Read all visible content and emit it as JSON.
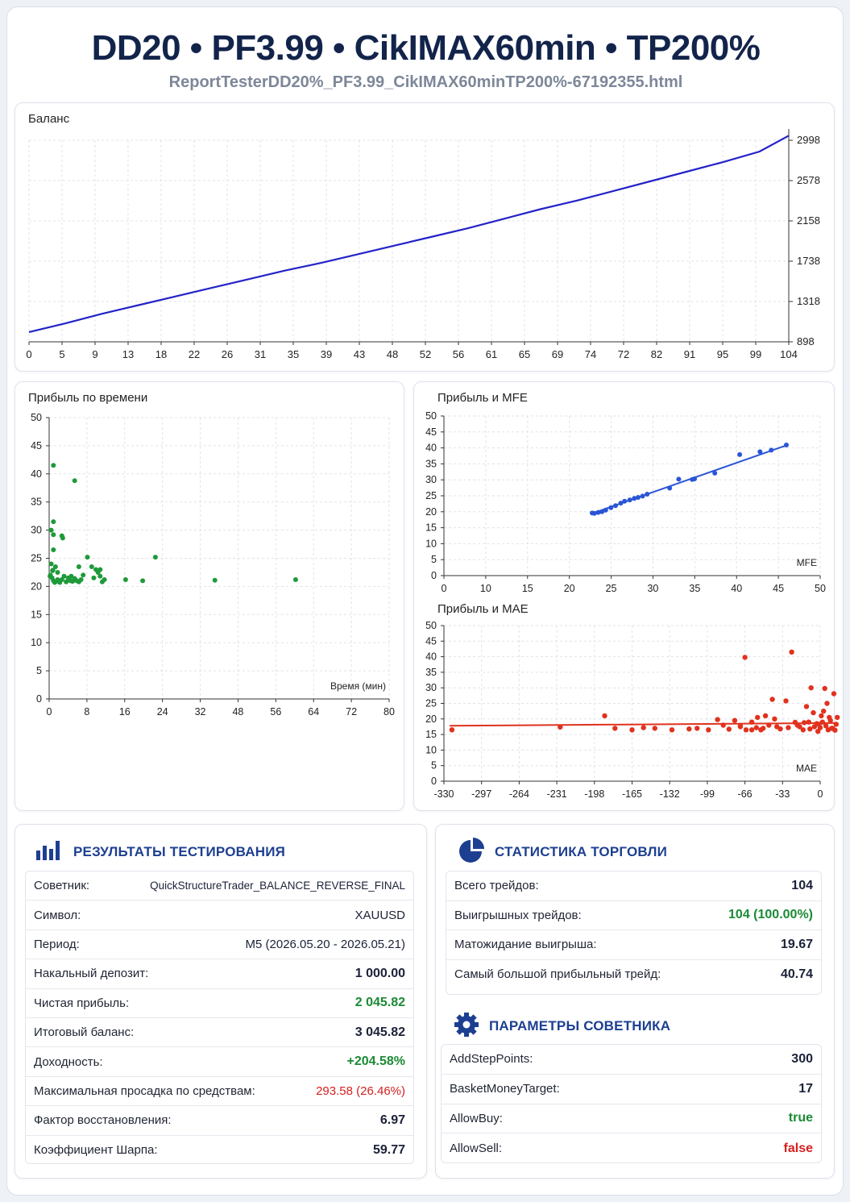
{
  "header": {
    "title": "DD20 • PF3.99 • CikIMAX60min • TP200%",
    "subtitle": "ReportTesterDD20%_PF3.99_CikIMAX60minTP200%-67192355.html"
  },
  "colors": {
    "balance_line": "#2323c8",
    "time_scatter": "#1e9a3a",
    "mfe_scatter": "#2a55d6",
    "mae_scatter": "#e0321e",
    "accent": "#1d3f91",
    "positive": "#1b8a35",
    "negative": "#d62020"
  },
  "charts": {
    "balance": {
      "title": "Баланс",
      "x_ticks": [
        "0",
        "5",
        "9",
        "13",
        "18",
        "22",
        "26",
        "31",
        "35",
        "39",
        "43",
        "48",
        "52",
        "56",
        "61",
        "65",
        "69",
        "74",
        "72",
        "82",
        "91",
        "95",
        "99",
        "104"
      ],
      "y_ticks": [
        "2998",
        "2578",
        "2158",
        "1738",
        "1318",
        "898"
      ]
    },
    "time": {
      "title": "Прибыль по времени",
      "x_label": "Время (мин)",
      "x_ticks": [
        "0",
        "8",
        "16",
        "24",
        "32",
        "48",
        "56",
        "64",
        "72",
        "80"
      ],
      "y_ticks": [
        "50",
        "45",
        "40",
        "35",
        "30",
        "25",
        "20",
        "15",
        "10",
        "5",
        "0"
      ]
    },
    "mfe": {
      "title": "Прибыль и MFE",
      "x_label": "MFE",
      "x_ticks": [
        "0",
        "10",
        "15",
        "20",
        "25",
        "30",
        "35",
        "40",
        "45",
        "50"
      ],
      "y_ticks": [
        "50",
        "45",
        "40",
        "35",
        "30",
        "25",
        "20",
        "15",
        "10",
        "5",
        "0"
      ]
    },
    "mae": {
      "title": "Прибыль и MAE",
      "x_label": "MAE",
      "x_ticks": [
        "-330",
        "-297",
        "-264",
        "-231",
        "-198",
        "-165",
        "-132",
        "-99",
        "-66",
        "-33",
        "0"
      ],
      "y_ticks": [
        "50",
        "45",
        "40",
        "35",
        "30",
        "25",
        "20",
        "15",
        "10",
        "5",
        "0"
      ]
    }
  },
  "chart_data": [
    {
      "type": "line",
      "title": "Баланс",
      "x": [
        0,
        5,
        10,
        15,
        20,
        25,
        30,
        35,
        40,
        45,
        50,
        55,
        60,
        65,
        70,
        75,
        80,
        85,
        90,
        95,
        100,
        104
      ],
      "y": [
        1000,
        1090,
        1190,
        1280,
        1370,
        1460,
        1550,
        1640,
        1720,
        1810,
        1900,
        1990,
        2080,
        2180,
        2280,
        2370,
        2470,
        2570,
        2670,
        2770,
        2880,
        3046
      ],
      "ylim": [
        898,
        2998
      ],
      "xlim": [
        0,
        104
      ]
    },
    {
      "type": "scatter",
      "title": "Прибыль по времени",
      "xlabel": "Время (мин)",
      "xlim": [
        0,
        80
      ],
      "ylim": [
        0,
        50
      ],
      "points": [
        [
          1,
          41.5
        ],
        [
          6,
          38.8
        ],
        [
          1,
          31.5
        ],
        [
          0.5,
          30
        ],
        [
          1,
          29.2
        ],
        [
          3,
          29
        ],
        [
          3.2,
          28.6
        ],
        [
          1,
          26.5
        ],
        [
          0.5,
          24
        ],
        [
          1.5,
          23.5
        ],
        [
          0.8,
          22.8
        ],
        [
          0.3,
          22
        ],
        [
          0.7,
          21.5
        ],
        [
          1,
          21
        ],
        [
          1.5,
          20.8
        ],
        [
          2,
          21.2
        ],
        [
          2.5,
          20.7
        ],
        [
          3,
          21.2
        ],
        [
          4,
          20.8
        ],
        [
          4.5,
          21.5
        ],
        [
          5,
          21
        ],
        [
          5.5,
          20.9
        ],
        [
          6,
          21.4
        ],
        [
          6.5,
          21
        ],
        [
          7,
          20.8
        ],
        [
          7.5,
          21.2
        ],
        [
          8,
          22
        ],
        [
          9,
          25.2
        ],
        [
          10,
          23.5
        ],
        [
          11,
          23
        ],
        [
          11.5,
          22.5
        ],
        [
          12,
          21.8
        ],
        [
          12.5,
          20.8
        ],
        [
          13,
          21.2
        ],
        [
          7,
          23.5
        ],
        [
          10.5,
          21.5
        ],
        [
          12,
          23
        ],
        [
          18,
          21.2
        ],
        [
          22,
          21
        ],
        [
          25,
          25.2
        ],
        [
          39,
          21.1
        ],
        [
          58,
          21.2
        ],
        [
          2,
          22.5
        ],
        [
          3.5,
          21.8
        ],
        [
          0.2,
          21.8
        ],
        [
          0.9,
          22.9
        ],
        [
          1.3,
          20.7
        ],
        [
          5.2,
          21.8
        ]
      ]
    },
    {
      "type": "scatter",
      "title": "Прибыль и MFE",
      "xlabel": "MFE",
      "xlim": [
        0,
        50
      ],
      "ylim": [
        0,
        50
      ],
      "points": [
        [
          19.7,
          19.6
        ],
        [
          20,
          19.5
        ],
        [
          20.5,
          19.8
        ],
        [
          21,
          20
        ],
        [
          21.5,
          20.5
        ],
        [
          22.2,
          21.3
        ],
        [
          22.8,
          21.9
        ],
        [
          23.5,
          22.7
        ],
        [
          24,
          23.3
        ],
        [
          24.7,
          23.7
        ],
        [
          25.3,
          24.2
        ],
        [
          25.8,
          24.5
        ],
        [
          26.4,
          24.9
        ],
        [
          27,
          25.5
        ],
        [
          30,
          27.4
        ],
        [
          31.2,
          30.2
        ],
        [
          33,
          30.1
        ],
        [
          33.3,
          30.3
        ],
        [
          36,
          32.1
        ],
        [
          39.3,
          37.9
        ],
        [
          42,
          38.8
        ],
        [
          43.5,
          39.3
        ],
        [
          45.5,
          40.9
        ]
      ],
      "trend": [
        [
          19.5,
          19.3
        ],
        [
          45.5,
          40.8
        ]
      ]
    },
    {
      "type": "scatter",
      "title": "Прибыль и MAE",
      "xlabel": "MAE",
      "xlim": [
        -330,
        0
      ],
      "ylim": [
        0,
        50
      ],
      "points": [
        [
          -323,
          16.5
        ],
        [
          -228,
          17.4
        ],
        [
          -189,
          21
        ],
        [
          -180,
          17
        ],
        [
          -165,
          16.5
        ],
        [
          -155,
          17.2
        ],
        [
          -145,
          17
        ],
        [
          -130,
          16.5
        ],
        [
          -115,
          16.8
        ],
        [
          -108,
          17
        ],
        [
          -98,
          16.5
        ],
        [
          -90,
          19.8
        ],
        [
          -70,
          17.5
        ],
        [
          -66,
          39.8
        ],
        [
          -60,
          19
        ],
        [
          -55,
          20.5
        ],
        [
          -50,
          17
        ],
        [
          -45,
          18
        ],
        [
          -42,
          26.3
        ],
        [
          -40,
          20
        ],
        [
          -35,
          16.8
        ],
        [
          -30,
          25.8
        ],
        [
          -25,
          41.5
        ],
        [
          -20,
          18
        ],
        [
          -15,
          16.5
        ],
        [
          -10,
          19
        ],
        [
          -8,
          30
        ],
        [
          -5,
          17.5
        ],
        [
          -3,
          18.5
        ],
        [
          0,
          17.2
        ],
        [
          2,
          19
        ],
        [
          4,
          29.8
        ],
        [
          6,
          25
        ],
        [
          8,
          20.5
        ],
        [
          10,
          17
        ],
        [
          12,
          28.1
        ],
        [
          14,
          18.3
        ],
        [
          15,
          20.5
        ],
        [
          -75,
          19.5
        ],
        [
          -80,
          16.7
        ],
        [
          -85,
          18
        ],
        [
          -60,
          16.5
        ],
        [
          -12,
          24
        ],
        [
          -18,
          17.5
        ],
        [
          -22,
          18.9
        ],
        [
          -28,
          17.2
        ],
        [
          -2,
          16
        ],
        [
          1,
          21
        ],
        [
          3,
          22.5
        ],
        [
          5,
          17.8
        ],
        [
          7,
          16.5
        ],
        [
          9,
          19.5
        ],
        [
          11,
          17
        ],
        [
          13,
          16.4
        ],
        [
          -1,
          18.3
        ],
        [
          -6,
          22
        ],
        [
          -9,
          16.8
        ],
        [
          -14,
          18.8
        ],
        [
          -38,
          17.5
        ],
        [
          -48,
          21
        ],
        [
          -52,
          16.5
        ],
        [
          -56,
          17.2
        ],
        [
          -65,
          16.5
        ],
        [
          -70,
          17.8
        ]
      ],
      "trend": [
        [
          -325,
          17.8
        ],
        [
          15,
          18.7
        ]
      ]
    }
  ],
  "results": {
    "heading": "РЕЗУЛЬТАТЫ ТЕСТИРОВАНИЯ",
    "rows": [
      {
        "label": "Советник:",
        "value": "QuickStructureTrader_BALANCE_REVERSE_FINAL"
      },
      {
        "label": "Символ:",
        "value": "XAUUSD"
      },
      {
        "label": "Период:",
        "value": "M5 (2026.05.20 - 2026.05.21)"
      },
      {
        "label": "Накальный депозит:",
        "value": "1 000.00"
      },
      {
        "label": "Чистая прибыль:",
        "value": "2 045.82"
      },
      {
        "label": "Итоговый баланс:",
        "value": "3 045.82"
      },
      {
        "label": "Доходность:",
        "value": "+204.58%"
      },
      {
        "label": "Максимальная просадка по средствам:",
        "value": "293.58 (26.46%)"
      },
      {
        "label": "Фактор восстановления:",
        "value": "6.97"
      },
      {
        "label": "Коэффициент Шарпа:",
        "value": "59.77"
      }
    ]
  },
  "stats": {
    "heading": "СТАТИСТИКА ТОРГОВЛИ",
    "rows": [
      {
        "label": "Всего трейдов:",
        "value": "104"
      },
      {
        "label": "Выигрышных трейдов:",
        "value": "104 (100.00%)"
      },
      {
        "label": "Матожидание выигрыша:",
        "value": "19.67"
      },
      {
        "label": "Самый большой прибыльный трейд:",
        "value": "40.74"
      }
    ]
  },
  "params": {
    "heading": "ПАРАМЕТРЫ СОВЕТНИКА",
    "rows": [
      {
        "label": "AddStepPoints:",
        "value": "300"
      },
      {
        "label": "BasketMoneyTarget:",
        "value": "17"
      },
      {
        "label": "AllowBuy:",
        "value": "true"
      },
      {
        "label": "AllowSell:",
        "value": "false"
      }
    ]
  },
  "icons": {
    "results": "bar-chart-icon",
    "stats": "pie-chart-icon",
    "params": "gear-icon"
  }
}
